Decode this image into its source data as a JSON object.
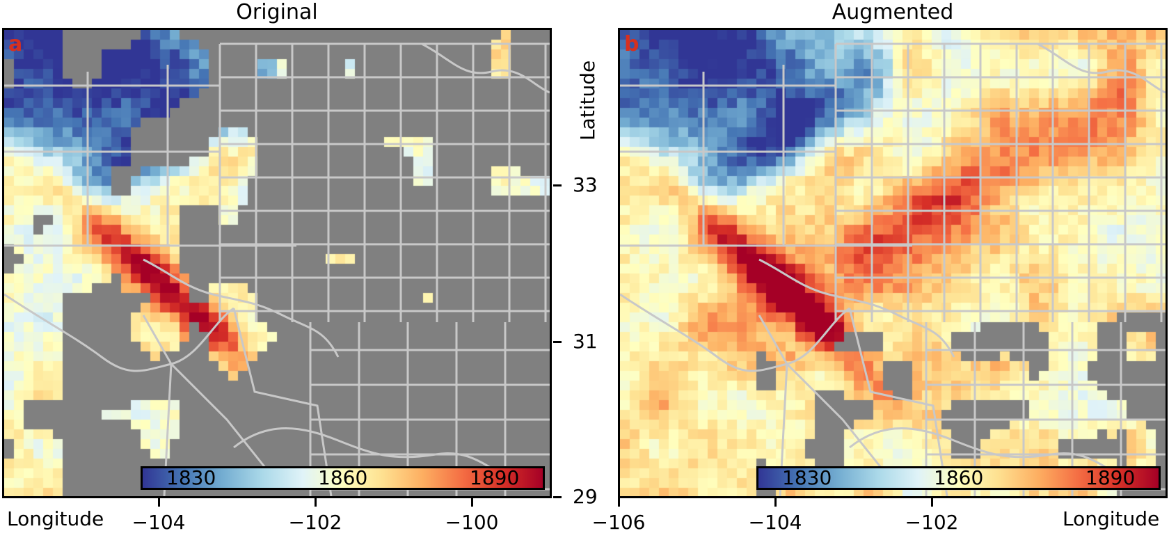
{
  "panels": [
    {
      "title": "Original",
      "letter": "a",
      "xlabel": "Longitude"
    },
    {
      "title": "Augmented",
      "letter": "b",
      "xlabel": "Longitude"
    }
  ],
  "shared_ylabel": "Latitude",
  "colors": {
    "no_data": "#808080",
    "borders": "#c8c8c8",
    "letter": "#d7301f"
  },
  "chart_data": [
    {
      "type": "heatmap",
      "title": "Original",
      "panel_letter": "a",
      "xlabel": "Longitude",
      "x_range": [
        -106,
        -98.9
      ],
      "y_range": [
        29,
        35
      ],
      "xticks": [
        -104,
        -102,
        -100
      ],
      "colormap": "RdYlBu_r",
      "colorbar": {
        "range": [
          1815,
          1900
        ],
        "ticks": [
          1830,
          1860,
          1890
        ]
      },
      "coverage": "sparse",
      "max_region": "narrow band near -103.5, 32.1 (values ~1890+)"
    },
    {
      "type": "heatmap",
      "title": "Augmented",
      "panel_letter": "b",
      "xlabel": "Longitude",
      "ylabel": "Latitude",
      "x_range": [
        -106,
        -98.9
      ],
      "y_range": [
        29,
        35
      ],
      "xticks": [
        -106,
        -104,
        -102
      ],
      "yticks": [
        29,
        31,
        33
      ],
      "colormap": "RdYlBu_r",
      "colorbar": {
        "range": [
          1815,
          1900
        ],
        "ticks": [
          1830,
          1860,
          1890
        ]
      },
      "coverage": "dense",
      "max_region": "narrow band near -103.5, 32.1 (values ~1890+)"
    }
  ]
}
